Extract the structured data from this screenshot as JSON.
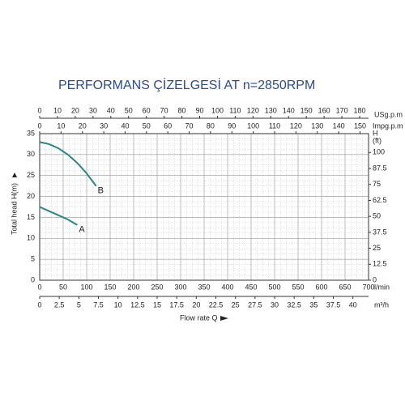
{
  "chart_data": {
    "type": "line",
    "title": "PERFORMANS ÇİZELGESİ  AT n=2850RPM",
    "y_label": "Total  head H(m)",
    "x_label": "Flow rate Q",
    "x_unit": "l/min",
    "xlim": [
      0,
      700
    ],
    "xticks": [
      0,
      50,
      100,
      150,
      200,
      250,
      300,
      350,
      400,
      450,
      500,
      550,
      600,
      650,
      700
    ],
    "ylim": [
      0,
      35
    ],
    "yticks": [
      0,
      5,
      10,
      15,
      20,
      25,
      30,
      35
    ],
    "grid": true,
    "x": [
      0,
      20,
      40,
      60,
      80,
      100,
      120
    ],
    "series": [
      {
        "name": "B",
        "color": "#2a8585",
        "values": [
          33,
          32.5,
          31.5,
          30,
          28,
          25.5,
          22.5
        ]
      },
      {
        "name": "A",
        "color": "#2a8585",
        "values": [
          17.5,
          16.5,
          15.5,
          14.5,
          13.2,
          null,
          null
        ]
      }
    ],
    "usgpm_axis": {
      "unit": "USg.p.m",
      "lim": [
        0,
        185
      ],
      "ticks": [
        0,
        10,
        20,
        30,
        40,
        50,
        60,
        70,
        80,
        90,
        100,
        110,
        120,
        130,
        140,
        150,
        160,
        170,
        180
      ]
    },
    "impgpm_axis": {
      "unit": "Impg.p.m",
      "lim": [
        0,
        154
      ],
      "ticks": [
        0,
        10,
        20,
        30,
        40,
        50,
        60,
        70,
        80,
        90,
        100,
        110,
        120,
        130,
        140,
        150
      ]
    },
    "m3h_axis": {
      "unit": "m³/h",
      "lim": [
        0,
        42
      ],
      "ticks": [
        0,
        2.5,
        5,
        7.5,
        10,
        12.5,
        15,
        17.5,
        20,
        22.5,
        25,
        27.5,
        30,
        32.5,
        35,
        37.5,
        40
      ]
    },
    "ft_axis": {
      "unit_top": "H",
      "unit_bottom": "(ft)",
      "lim": [
        0,
        114.8
      ],
      "ticks": [
        0,
        12.5,
        25,
        37.5,
        50,
        62.5,
        75,
        87.5,
        100
      ]
    }
  }
}
